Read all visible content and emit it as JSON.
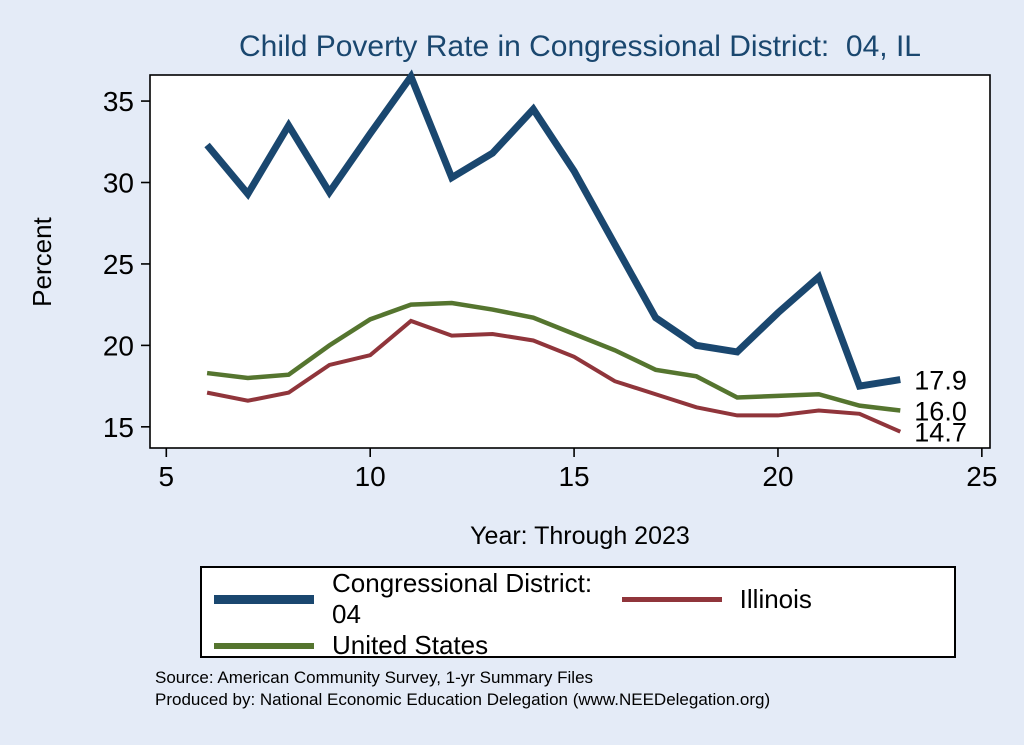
{
  "title": "Child Poverty Rate in Congressional District:  04, IL",
  "chart_data": {
    "type": "line",
    "x": [
      6,
      7,
      8,
      9,
      10,
      11,
      12,
      13,
      14,
      15,
      16,
      17,
      18,
      19,
      20,
      21,
      22,
      23
    ],
    "series": [
      {
        "name": "Congressional District:  04",
        "color": "#1a476f",
        "width": 7,
        "values": [
          32.3,
          29.3,
          33.5,
          29.4,
          33.0,
          36.5,
          30.3,
          31.8,
          34.5,
          30.7,
          26.2,
          21.7,
          20.0,
          19.6,
          22.0,
          24.2,
          17.5,
          17.9
        ],
        "end_label": "17.9"
      },
      {
        "name": "United States",
        "color": "#55752f",
        "width": 4.5,
        "values": [
          18.3,
          18.0,
          18.2,
          20.0,
          21.6,
          22.5,
          22.6,
          22.2,
          21.7,
          20.7,
          19.7,
          18.5,
          18.1,
          16.8,
          16.9,
          17.0,
          16.3,
          16.0
        ],
        "end_label": "16.0"
      },
      {
        "name": "Illinois",
        "color": "#90353b",
        "width": 4,
        "values": [
          17.1,
          16.6,
          17.1,
          18.8,
          19.4,
          21.5,
          20.6,
          20.7,
          20.3,
          19.3,
          17.8,
          17.0,
          16.2,
          15.7,
          15.7,
          16.0,
          15.8,
          14.7
        ],
        "end_label": "14.7"
      }
    ],
    "title": "Child Poverty Rate in Congressional District:  04, IL",
    "xlabel": "Year: Through 2023",
    "ylabel": "Percent",
    "xticks": [
      5,
      10,
      15,
      20,
      25
    ],
    "yticks": [
      15,
      20,
      25,
      30,
      35
    ],
    "xlim": [
      4.6,
      25.2
    ],
    "ylim": [
      13.7,
      36.6
    ],
    "grid": false,
    "legend_position": "bottom",
    "plot_background": "#ffffff",
    "page_background": "#e4ebf7"
  },
  "legend": {
    "items": [
      {
        "label": "Congressional District:  04",
        "color": "#1a476f",
        "swatch_height": 9
      },
      {
        "label": "Illinois",
        "color": "#90353b",
        "swatch_height": 5
      },
      {
        "label": "United States",
        "color": "#55752f",
        "swatch_height": 6
      }
    ]
  },
  "footer": {
    "line1": "Source: American Community Survey, 1-yr Summary Files",
    "line2": "Produced by: National Economic Education Delegation (www.NEEDelegation.org)"
  }
}
